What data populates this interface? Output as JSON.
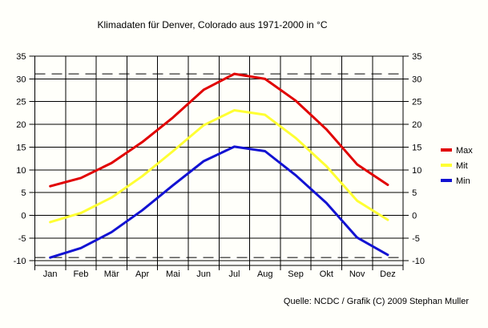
{
  "title": "Klimadaten für Denver, Colorado aus 1971-2000 in °C",
  "source": "Quelle: NCDC / Grafik (C) 2009 Stephan Muller",
  "chart_data": {
    "type": "line",
    "categories": [
      "Jan",
      "Feb",
      "Mär",
      "Apr",
      "Mai",
      "Jun",
      "Jul",
      "Aug",
      "Sep",
      "Okt",
      "Nov",
      "Dez"
    ],
    "series": [
      {
        "name": "Max",
        "color": "#e10000",
        "values": [
          6.4,
          8.2,
          11.5,
          16.1,
          21.5,
          27.6,
          31.1,
          30.0,
          25.2,
          18.9,
          11.2,
          6.7
        ]
      },
      {
        "name": "Mit",
        "color": "#ffff33",
        "values": [
          -1.5,
          0.5,
          3.9,
          8.6,
          14.1,
          19.8,
          23.1,
          22.1,
          17.0,
          10.8,
          3.2,
          -1.0
        ]
      },
      {
        "name": "Min",
        "color": "#1212d2",
        "values": [
          -9.3,
          -7.2,
          -3.7,
          1.1,
          6.6,
          11.9,
          15.1,
          14.1,
          8.8,
          2.7,
          -4.9,
          -8.7
        ]
      }
    ],
    "yticks": [
      35,
      30,
      25,
      20,
      15,
      10,
      5,
      0,
      -5,
      -10
    ],
    "ylim": [
      -11,
      35
    ],
    "ylabel_left": "",
    "ylabel_right": "",
    "dashed_lines": [
      31.1,
      -9.3
    ],
    "grid": true,
    "legend_position": "right",
    "axis_color": "#000000",
    "grid_color": "#000000"
  }
}
